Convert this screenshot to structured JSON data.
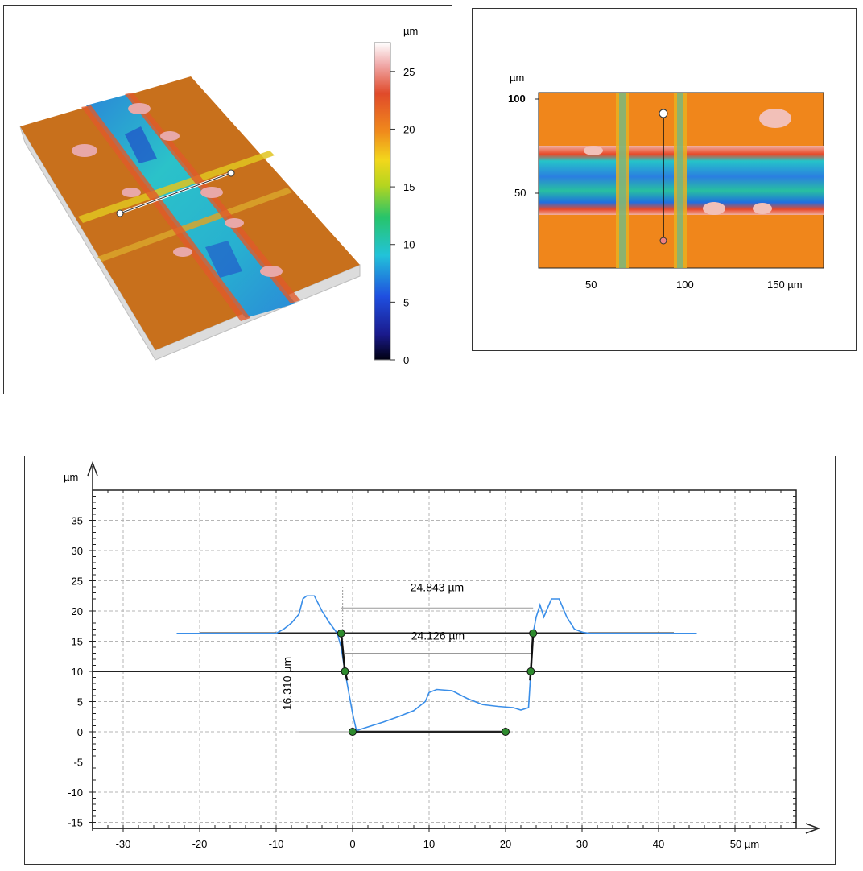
{
  "colorbar": {
    "unit": "µm",
    "ticks": [
      "0",
      "5",
      "10",
      "15",
      "20",
      "25"
    ],
    "range": [
      0,
      27.5
    ]
  },
  "map2d": {
    "y_unit": "µm",
    "y_ticks": [
      "50",
      "100"
    ],
    "x_ticks": [
      "50",
      "100",
      "150 µm"
    ]
  },
  "colors": {
    "surface_orange": "#f0861b",
    "profile_blue": "#3a8ee8",
    "marker_green": "#2e8b2e"
  },
  "chart_data": {
    "type": "line",
    "y_unit": "µm",
    "x_unit": "µm",
    "xlim": [
      -34,
      58
    ],
    "ylim": [
      -16,
      40
    ],
    "x_ticks": [
      "-30",
      "-20",
      "-10",
      "0",
      "10",
      "20",
      "30",
      "40",
      "50 µm"
    ],
    "y_ticks": [
      "35",
      "30",
      "25",
      "20",
      "15",
      "10",
      "5",
      "0",
      "-5",
      "-10",
      "-15"
    ],
    "grid": true,
    "series": [
      {
        "x": [
          -23,
          -10,
          -9,
          -8,
          -7,
          -6.5,
          -6,
          -5,
          -4,
          -3,
          -2,
          -1.5,
          -1,
          0,
          0.5,
          2,
          4,
          6,
          8,
          9.5,
          10,
          11,
          13,
          15,
          17,
          19,
          21,
          22,
          23,
          23.3,
          23.6,
          24,
          24.5,
          25,
          26,
          27,
          28,
          29,
          30,
          31,
          45
        ],
        "y": [
          16.3,
          16.3,
          17,
          18,
          19.5,
          22,
          22.5,
          22.5,
          20,
          18,
          16.3,
          14,
          10,
          3,
          0.2,
          0.8,
          1.6,
          2.5,
          3.5,
          5,
          6.5,
          7,
          6.8,
          5.5,
          4.5,
          4.2,
          4,
          3.6,
          4,
          10,
          16.3,
          19,
          21,
          19,
          22,
          22,
          19,
          17,
          16.5,
          16.3,
          16.3
        ]
      }
    ],
    "annotations": {
      "upper_width": "24.843 µm",
      "lower_width": "24.126 µm",
      "height": "16.310 µm"
    },
    "reference_levels": [
      16.3,
      10,
      0
    ],
    "markers": [
      [
        -1.5,
        16.3
      ],
      [
        -1,
        10
      ],
      [
        0,
        0
      ],
      [
        20,
        0
      ],
      [
        23.3,
        10
      ],
      [
        23.6,
        16.3
      ]
    ]
  }
}
